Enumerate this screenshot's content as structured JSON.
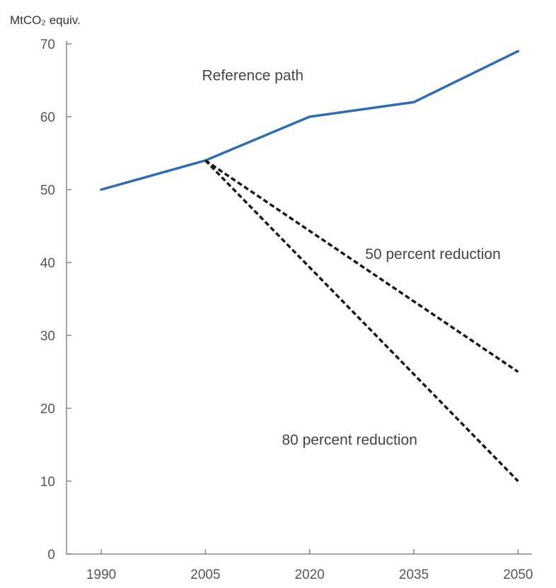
{
  "chart_data": {
    "type": "line",
    "ylabel": "MtCO₂ equiv.",
    "x": [
      1990,
      2005,
      2020,
      2035,
      2050
    ],
    "xlim": [
      1985,
      2052
    ],
    "ylim": [
      0,
      70
    ],
    "yticks": [
      0,
      10,
      20,
      30,
      40,
      50,
      60,
      70
    ],
    "xticks": [
      1990,
      2005,
      2020,
      2035,
      2050
    ],
    "grid": false,
    "legend": "inline labels",
    "series": [
      {
        "name": "Reference path",
        "color": "#2f6db3",
        "style": "solid",
        "points": [
          [
            1990,
            50
          ],
          [
            2005,
            54
          ],
          [
            2020,
            60
          ],
          [
            2035,
            62
          ],
          [
            2050,
            69
          ]
        ]
      },
      {
        "name": "50 percent reduction",
        "color": "#1a1a1a",
        "style": "dashed",
        "points": [
          [
            2005,
            54
          ],
          [
            2050,
            25
          ]
        ]
      },
      {
        "name": "80 percent reduction",
        "color": "#1a1a1a",
        "style": "dashed",
        "points": [
          [
            2005,
            54
          ],
          [
            2050,
            10
          ]
        ]
      }
    ],
    "annotations": [
      {
        "text": "Reference path",
        "x": 2004.5,
        "y": 65
      },
      {
        "text": "50 percent reduction",
        "x": 2028,
        "y": 40.5
      },
      {
        "text": "80 percent reduction",
        "x": 2016,
        "y": 15
      }
    ]
  }
}
